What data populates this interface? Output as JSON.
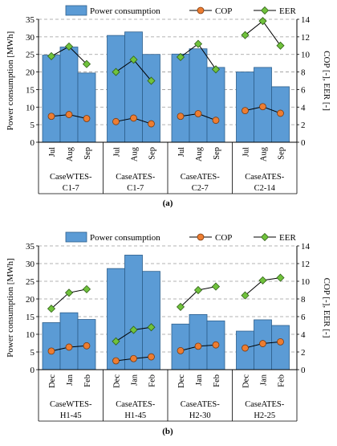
{
  "chart_data": [
    {
      "type": "bar",
      "panel_label": "(a)",
      "ylabel": "Power consumption [MWh]",
      "y2label": "COP [-], EER [-]",
      "ylim": [
        0,
        35
      ],
      "y2lim": [
        0,
        14
      ],
      "yticks": [
        "0",
        "5",
        "10",
        "15",
        "20",
        "25",
        "30",
        "35"
      ],
      "y2ticks": [
        "0",
        "2",
        "4",
        "6",
        "8",
        "10",
        "12",
        "14"
      ],
      "legend": [
        "Power consumption",
        "COP",
        "EER"
      ],
      "groups": [
        {
          "name": "CaseWTES-\nC1-7",
          "name_lines": [
            "CaseWTES-",
            "C1-7"
          ],
          "categories": [
            "Jul",
            "Aug",
            "Sep"
          ],
          "power": [
            24.8,
            27.1,
            19.7
          ],
          "cop": [
            2.95,
            3.15,
            2.7
          ],
          "eer": [
            9.8,
            10.9,
            8.9
          ]
        },
        {
          "name": "CaseATES-\nC1-7",
          "name_lines": [
            "CaseATES-",
            "C1-7"
          ],
          "categories": [
            "Jul",
            "Aug",
            "Sep"
          ],
          "power": [
            30.4,
            31.4,
            25.0
          ],
          "cop": [
            2.35,
            2.75,
            2.1
          ],
          "eer": [
            8.0,
            9.4,
            7.0
          ]
        },
        {
          "name": "CaseATES-\nC2-7",
          "name_lines": [
            "CaseATES-",
            "C2-7"
          ],
          "categories": [
            "Jul",
            "Aug",
            "Sep"
          ],
          "power": [
            25.1,
            26.6,
            21.3
          ],
          "cop": [
            2.95,
            3.25,
            2.5
          ],
          "eer": [
            9.7,
            11.2,
            8.3
          ]
        },
        {
          "name": "CaseATES-\nC2-14",
          "name_lines": [
            "CaseATES-",
            "C2-14"
          ],
          "categories": [
            "Jul",
            "Aug",
            "Sep"
          ],
          "power": [
            20.0,
            21.3,
            15.8
          ],
          "cop": [
            3.6,
            4.05,
            3.3
          ],
          "eer": [
            12.2,
            13.8,
            11.0
          ]
        }
      ]
    },
    {
      "type": "bar",
      "panel_label": "(b)",
      "ylabel": "Power consumption [MWh]",
      "y2label": "COP [-], EER [-]",
      "ylim": [
        0,
        35
      ],
      "y2lim": [
        0,
        14
      ],
      "yticks": [
        "0",
        "5",
        "10",
        "15",
        "20",
        "25",
        "30",
        "35"
      ],
      "y2ticks": [
        "0",
        "2",
        "4",
        "6",
        "8",
        "10",
        "12",
        "14"
      ],
      "legend": [
        "Power consumption",
        "COP",
        "EER"
      ],
      "groups": [
        {
          "name": "CaseWTES-\nH1-45",
          "name_lines": [
            "CaseWTES-",
            "H1-45"
          ],
          "categories": [
            "Dec",
            "Jan",
            "Feb"
          ],
          "power": [
            13.3,
            16.1,
            14.2
          ],
          "cop": [
            2.1,
            2.55,
            2.7
          ],
          "eer": [
            6.9,
            8.7,
            9.1
          ]
        },
        {
          "name": "CaseATES-\nH1-45",
          "name_lines": [
            "CaseATES-",
            "H1-45"
          ],
          "categories": [
            "Dec",
            "Jan",
            "Feb"
          ],
          "power": [
            28.6,
            32.4,
            27.8
          ],
          "cop": [
            1.0,
            1.25,
            1.45
          ],
          "eer": [
            3.2,
            4.5,
            4.8
          ]
        },
        {
          "name": "CaseATES-\nH2-30",
          "name_lines": [
            "CaseATES-",
            "H2-30"
          ],
          "categories": [
            "Dec",
            "Jan",
            "Feb"
          ],
          "power": [
            12.9,
            15.6,
            13.8
          ],
          "cop": [
            2.15,
            2.65,
            2.8
          ],
          "eer": [
            7.1,
            9.0,
            9.4
          ]
        },
        {
          "name": "CaseATES-\nH2-25",
          "name_lines": [
            "CaseATES-",
            "H2-25"
          ],
          "categories": [
            "Dec",
            "Jan",
            "Feb"
          ],
          "power": [
            10.9,
            14.1,
            12.5
          ],
          "cop": [
            2.45,
            2.95,
            3.15
          ],
          "eer": [
            8.4,
            10.1,
            10.4
          ]
        }
      ]
    }
  ],
  "colors": {
    "bar_fill": "#5B9BD5",
    "bar_stroke": "#2E5F8C",
    "cop_fill": "#ED7D31",
    "eer_fill": "#70C23C",
    "line": "#000000",
    "grid": "#9A9A9A"
  }
}
